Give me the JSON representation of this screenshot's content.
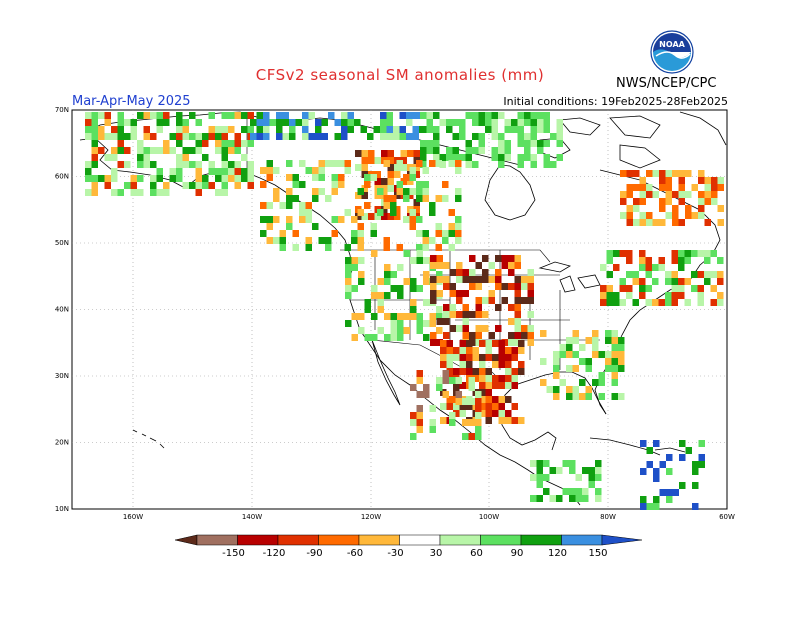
{
  "title": "CFSv2 seasonal SM anomalies (mm)",
  "period": "Mar-Apr-May 2025",
  "initial_conditions": "Initial conditions: 19Feb2025-28Feb2025",
  "org": "NWS/NCEP/CPC",
  "logo_text": "NOAA",
  "lat_labels": [
    "70N",
    "60N",
    "50N",
    "40N",
    "30N",
    "20N",
    "10N"
  ],
  "lon_labels": [
    "160W",
    "140W",
    "120W",
    "100W",
    "80W",
    "60W"
  ],
  "colorbar": {
    "labels": [
      "-150",
      "-120",
      "-90",
      "-60",
      "-30",
      "30",
      "60",
      "90",
      "120",
      "150"
    ],
    "colors": [
      "#5c2a1a",
      "#a07060",
      "#b80000",
      "#e03000",
      "#ff6a00",
      "#ffb83a",
      "#ffffff",
      "#b8f5a8",
      "#5ce060",
      "#10a010",
      "#3a8fe0",
      "#1e50c8"
    ]
  },
  "anomaly_colors": {
    "very_wet": "#1e50c8",
    "wet3": "#3a8fe0",
    "wet2": "#10a010",
    "wet1": "#5ce060",
    "wet0": "#b8f5a8",
    "dry0": "#ffb83a",
    "dry1": "#ff6a00",
    "dry2": "#e03000",
    "dry3": "#b80000",
    "dry4": "#a07060",
    "very_dry": "#5c2a1a"
  }
}
